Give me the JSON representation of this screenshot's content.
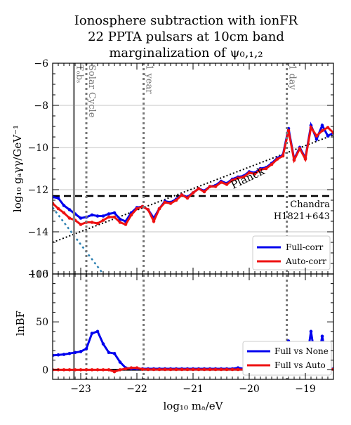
{
  "chart_data": {
    "title": [
      "Ionosphere subtraction with ionFR",
      "22 PPTA pulsars at 10cm band",
      "marginalization of ψ₀,₁,₂"
    ],
    "xlabel": "log₁₀ mₐ/eV",
    "x_ticks": [
      "−23",
      "−22",
      "−21",
      "−20",
      "−19"
    ],
    "xlim": [
      -23.5,
      -18.5
    ],
    "top": {
      "type": "line",
      "ylabel": "log₁₀ gₐγγ/GeV⁻¹",
      "ylim": [
        -16,
        -6
      ],
      "y_ticks": [
        {
          "v": -6,
          "t": "−6"
        },
        {
          "v": -8,
          "t": "−8"
        },
        {
          "v": -10,
          "t": "−10"
        },
        {
          "v": -12,
          "t": "−12"
        },
        {
          "v": -14,
          "t": "−14"
        },
        {
          "v": -16,
          "t": "−16"
        }
      ],
      "grid_y": [
        -8,
        -10,
        -12,
        -14
      ],
      "x": [
        -23.5,
        -23.4,
        -23.3,
        -23.2,
        -23.1,
        -23.0,
        -22.9,
        -22.8,
        -22.7,
        -22.6,
        -22.5,
        -22.4,
        -22.3,
        -22.2,
        -22.1,
        -22.0,
        -21.9,
        -21.8,
        -21.7,
        -21.6,
        -21.5,
        -21.4,
        -21.3,
        -21.2,
        -21.1,
        -21.0,
        -20.9,
        -20.8,
        -20.7,
        -20.6,
        -20.5,
        -20.4,
        -20.3,
        -20.2,
        -20.1,
        -20.0,
        -19.9,
        -19.8,
        -19.7,
        -19.6,
        -19.5,
        -19.4,
        -19.3,
        -19.2,
        -19.1,
        -19.0,
        -18.9,
        -18.8,
        -18.7,
        -18.6,
        -18.5
      ],
      "series": [
        {
          "name": "Full-corr",
          "color": "#0000ee",
          "values": [
            -12.35,
            -12.4,
            -12.75,
            -12.95,
            -13.15,
            -13.35,
            -13.3,
            -13.2,
            -13.25,
            -13.25,
            -13.15,
            -13.1,
            -13.4,
            -13.5,
            -13.1,
            -12.85,
            -12.8,
            -12.95,
            -13.35,
            -12.9,
            -12.55,
            -12.6,
            -12.45,
            -12.25,
            -12.35,
            -12.15,
            -11.95,
            -12.05,
            -11.85,
            -11.8,
            -11.6,
            -11.7,
            -11.5,
            -11.4,
            -11.35,
            -11.15,
            -11.2,
            -11.0,
            -10.95,
            -10.75,
            -10.5,
            -10.35,
            -9.1,
            -10.55,
            -10.0,
            -10.5,
            -8.95,
            -9.6,
            -8.95,
            -9.45,
            -9.3
          ]
        },
        {
          "name": "Auto-corr",
          "color": "#ee1111",
          "values": [
            -12.65,
            -12.9,
            -13.1,
            -13.35,
            -13.45,
            -13.65,
            -13.55,
            -13.55,
            -13.6,
            -13.45,
            -13.3,
            -13.3,
            -13.55,
            -13.65,
            -13.2,
            -12.9,
            -12.8,
            -12.95,
            -13.5,
            -12.9,
            -12.6,
            -12.65,
            -12.5,
            -12.25,
            -12.4,
            -12.15,
            -11.95,
            -12.1,
            -11.85,
            -11.85,
            -11.65,
            -11.75,
            -11.55,
            -11.45,
            -11.4,
            -11.2,
            -11.25,
            -11.05,
            -11.0,
            -10.8,
            -10.55,
            -10.4,
            -9.2,
            -10.6,
            -10.05,
            -10.55,
            -9.05,
            -9.45,
            -9.2,
            -9.05,
            -9.3
          ]
        }
      ],
      "reference_lines": {
        "chandra": {
          "y": -12.3,
          "label": [
            "Chandra",
            "H1821+643"
          ]
        },
        "planck": {
          "from": [
            -23.5,
            -14.5
          ],
          "to": [
            -18.5,
            -9.4
          ],
          "label": "Planck"
        },
        "blue_dotted": {
          "from": [
            -23.5,
            -12.85
          ],
          "to": [
            -22.6,
            -16.0
          ]
        }
      },
      "vertical_markers": [
        {
          "x": -23.12,
          "label": "Tₒbₛ",
          "style": "solid-gray"
        },
        {
          "x": -22.9,
          "label": "Solar Cycle",
          "style": "dotted"
        },
        {
          "x": -21.88,
          "label": "1 year",
          "style": "dotted"
        },
        {
          "x": -19.33,
          "label": "1 day",
          "style": "dotted"
        }
      ],
      "legend": {
        "placement": "lower-right",
        "entries": [
          "Full-corr",
          "Auto-corr"
        ]
      }
    },
    "bottom": {
      "type": "line",
      "ylabel": "lnBF",
      "ylim": [
        -10,
        100
      ],
      "y_ticks": [
        {
          "v": 0,
          "t": "0"
        },
        {
          "v": 50,
          "t": "50"
        },
        {
          "v": 100,
          "t": "100"
        }
      ],
      "series": [
        {
          "name": "Full vs None",
          "color": "#0000ee",
          "values": [
            15,
            15.5,
            16,
            17,
            18,
            19,
            22,
            38,
            40,
            27,
            18,
            17,
            8,
            2,
            1,
            1,
            1,
            1,
            1,
            1,
            1,
            1,
            1,
            1,
            1,
            1,
            1,
            1,
            1,
            1,
            1,
            1,
            1,
            2,
            1,
            1,
            1,
            1,
            1,
            1,
            1,
            1,
            30,
            1,
            2,
            1,
            40,
            2,
            35,
            1,
            1
          ]
        },
        {
          "name": "Full vs Auto",
          "color": "#ee1111",
          "values": [
            0,
            0,
            0,
            0,
            0,
            0,
            0,
            0,
            0,
            0,
            0,
            -2,
            0,
            1,
            2,
            2,
            0.5,
            0.3,
            0.3,
            0.3,
            0.3,
            0.3,
            0.3,
            0.3,
            0.3,
            0.3,
            0.3,
            0.3,
            0.3,
            0.3,
            0.3,
            0.3,
            0.3,
            0.3,
            0.3,
            0.3,
            0.3,
            0.3,
            0.3,
            0.3,
            0.3,
            0.3,
            0.5,
            0.5,
            0.5,
            0.5,
            0.5,
            0.5,
            0.5,
            0.5,
            0.5
          ]
        }
      ],
      "legend": {
        "placement": "lower-right",
        "entries": [
          "Full vs None",
          "Full vs Auto"
        ]
      }
    }
  }
}
